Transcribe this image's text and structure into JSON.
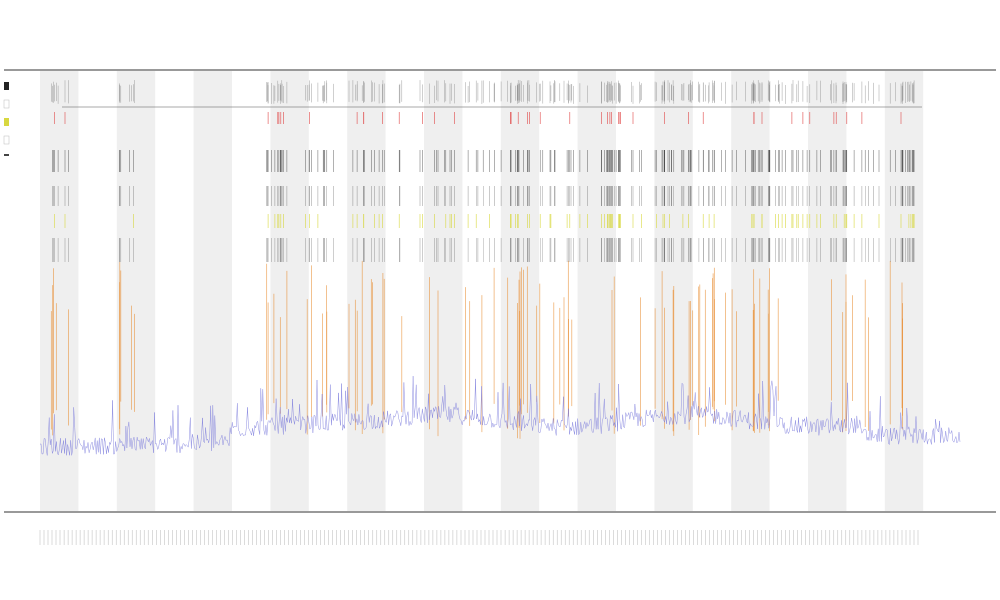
{
  "chart_data": {
    "type": "line",
    "title_lines": [
      "",
      "",
      ""
    ],
    "xlabel": "",
    "ylabel": "",
    "grid": false,
    "legend": "top-left",
    "band_count": 12,
    "x_tick_count": 220,
    "series": [
      {
        "color": "#7b7bdc",
        "role": "baseline-trace"
      },
      {
        "color": "#e85a1c",
        "role": "event-marks"
      },
      {
        "color": "#222222",
        "role": "event-marks"
      },
      {
        "color": "#d8d840",
        "role": "event-marks"
      },
      {
        "color": "#e04848",
        "role": "event-marks"
      }
    ],
    "colors": {
      "band": "#efefef",
      "axis": "#333333",
      "trace": "#7b7bdc",
      "orange": "#e88a2c",
      "red": "#e04848",
      "black": "#222222",
      "yellow": "#d8d840"
    }
  }
}
